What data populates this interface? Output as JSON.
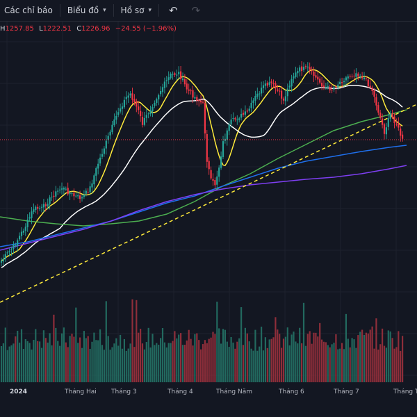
{
  "toolbar": {
    "indicators_label": "Các chỉ báo",
    "chart_label": "Biểu đồ",
    "profile_label": "Hồ sơ"
  },
  "ohlc": {
    "h_label": "H",
    "h_value": "1257.85",
    "l_label": "L",
    "l_value": "1222.51",
    "c_label": "C",
    "c_value": "1226.96",
    "change": "−24.55 (−1.96%)"
  },
  "colors": {
    "background": "#131722",
    "up": "#26a69a",
    "down": "#f23645",
    "ma_yellow": "#ffeb3b",
    "ma_white": "#ffffff",
    "ma_green": "#4caf50",
    "ma_blue": "#2962ff",
    "ma_purple": "#7e3ff2",
    "trendline": "#ffeb3b"
  },
  "chart_data": {
    "type": "candlestick",
    "x_axis": {
      "labels": [
        "2024",
        "Tháng Hai",
        "Tháng 3",
        "Tháng 4",
        "Tháng Năm",
        "Tháng 6",
        "Tháng 7",
        "Tháng Tá"
      ]
    },
    "last_close": 1226.96
  }
}
